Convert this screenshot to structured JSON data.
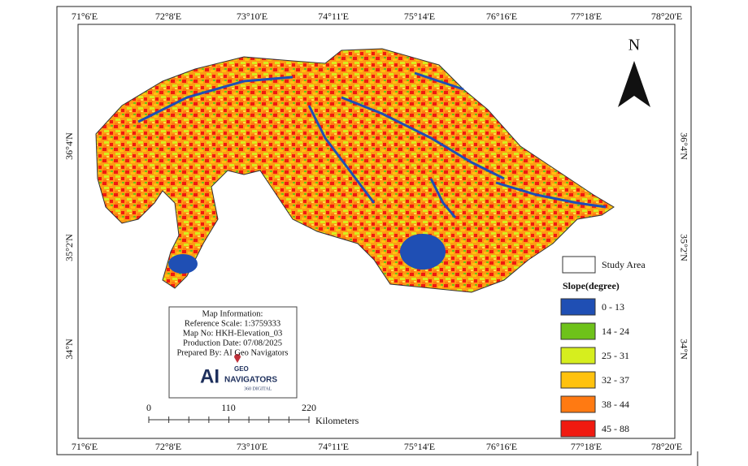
{
  "graticule": {
    "longitudes": [
      "71°6'E",
      "72°8'E",
      "73°10'E",
      "74°11'E",
      "75°14'E",
      "76°16'E",
      "77°18'E",
      "78°20'E"
    ],
    "latitudes": [
      "36°4'N",
      "35°2'N",
      "34°N"
    ]
  },
  "north_arrow": "N",
  "legend": {
    "study_area": "Study Area",
    "title": "Slope(degree)",
    "classes": [
      {
        "label": "0 - 13",
        "color": "#1f4fb4"
      },
      {
        "label": "14 - 24",
        "color": "#6ec21a"
      },
      {
        "label": "25 - 31",
        "color": "#d6ee1e"
      },
      {
        "label": "32 - 37",
        "color": "#ffc20e"
      },
      {
        "label": "38 - 44",
        "color": "#ff7a12"
      },
      {
        "label": "45 - 88",
        "color": "#f01a10"
      }
    ]
  },
  "info": {
    "title": "Map Information:",
    "lines": [
      "Reference Scale: 1:3759333",
      "Map No: HKH-Elevation_03",
      "Production Date: 07/08/2025",
      "Prepared By: AI Geo Navigators"
    ],
    "logo": {
      "mark": "AI",
      "geo": "GEO",
      "name": "NAVIGATORS",
      "tag": "360 DIGITAL"
    }
  },
  "scale_bar": {
    "ticks": [
      "0",
      "110",
      "220"
    ],
    "unit": "Kilometers"
  }
}
